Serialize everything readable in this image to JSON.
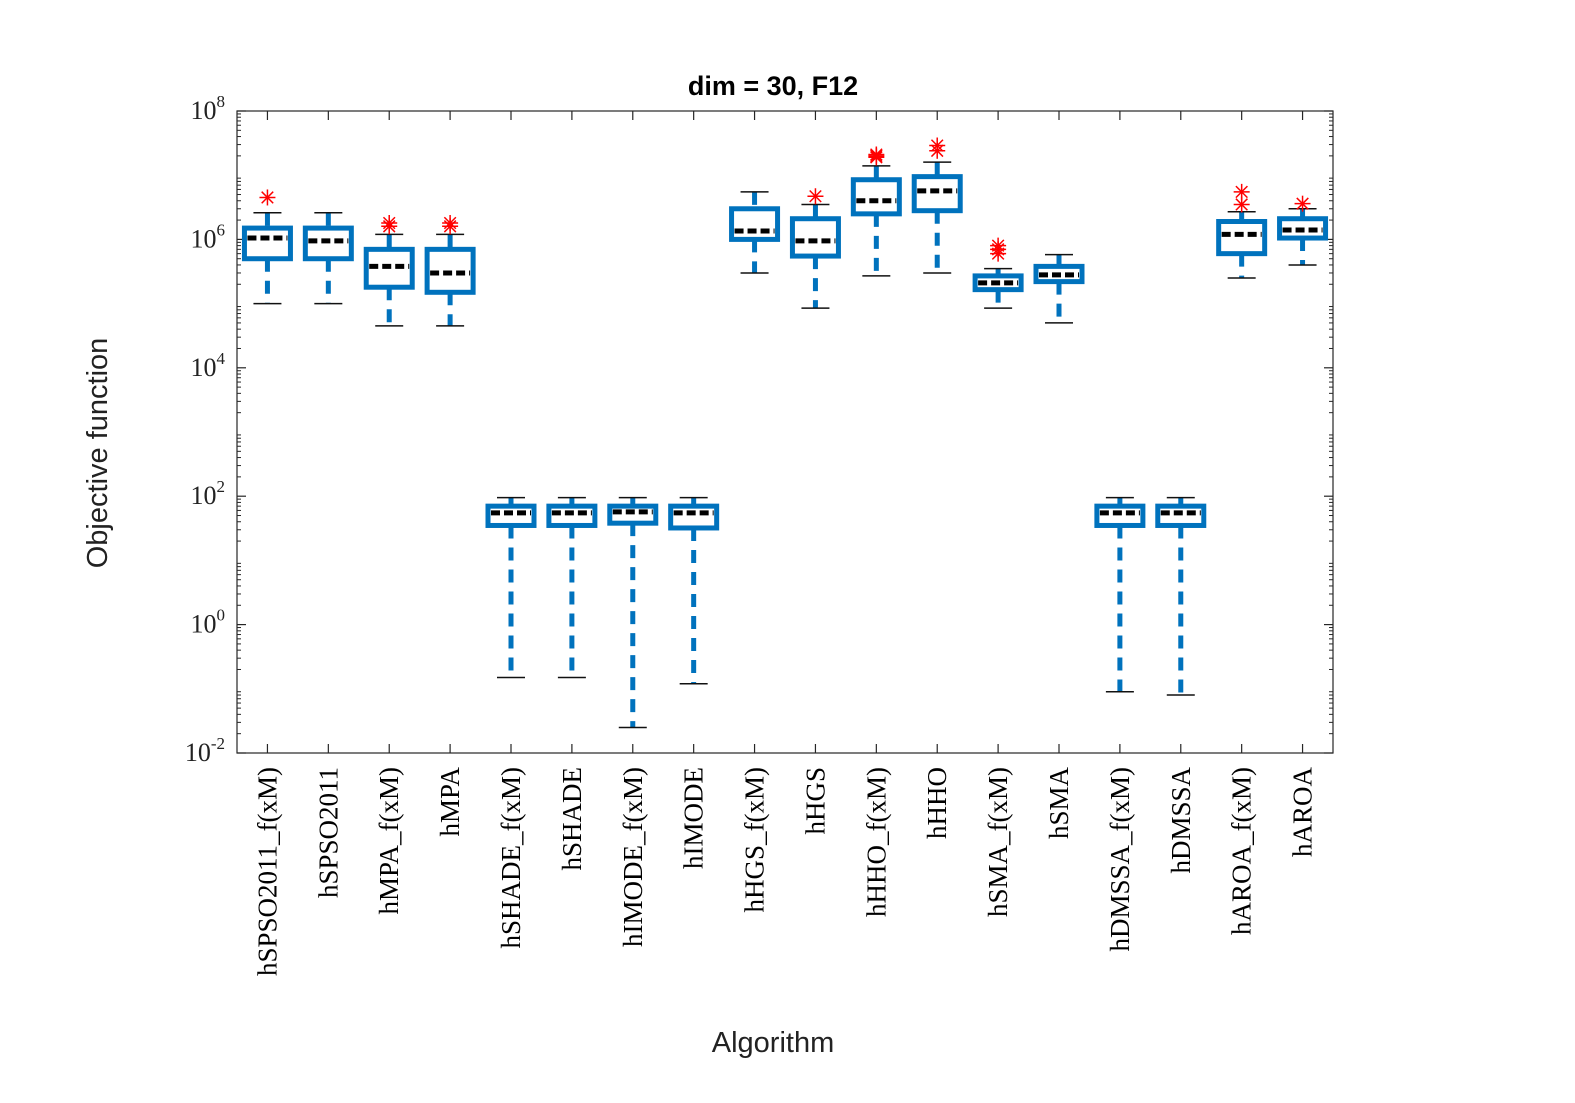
{
  "chart_data": {
    "type": "box",
    "title": "dim = 30,  F12",
    "xlabel": "Algorithm",
    "ylabel": "Objective function",
    "yscale": "log",
    "ylim": [
      0.01,
      100000000
    ],
    "yticks": [
      {
        "base": "10",
        "exp": "-2",
        "value": 0.01
      },
      {
        "base": "10",
        "exp": "0",
        "value": 1
      },
      {
        "base": "10",
        "exp": "2",
        "value": 100
      },
      {
        "base": "10",
        "exp": "4",
        "value": 10000
      },
      {
        "base": "10",
        "exp": "6",
        "value": 1000000
      },
      {
        "base": "10",
        "exp": "8",
        "value": 100000000
      }
    ],
    "colors": {
      "box": "#0072BD",
      "median": "#000000",
      "outlier": "#FF0000",
      "axis": "#262626"
    },
    "categories": [
      "hSPSO2011_f(xM)",
      "hSPSO2011",
      "hMPA_f(xM)",
      "hMPA",
      "hSHADE_f(xM)",
      "hSHADE",
      "hIMODE_f(xM)",
      "hIMODE",
      "hHGS_f(xM)",
      "hHGS",
      "hHHO_f(xM)",
      "hHHO",
      "hSMA_f(xM)",
      "hSMA",
      "hDMSSA_f(xM)",
      "hDMSSA",
      "hAROA_f(xM)",
      "hAROA"
    ],
    "boxes": [
      {
        "min": 100000,
        "q1": 500000,
        "median": 1050000,
        "q3": 1500000,
        "max": 2600000,
        "outliers": [
          4500000
        ]
      },
      {
        "min": 100000,
        "q1": 500000,
        "median": 950000,
        "q3": 1500000,
        "max": 2600000,
        "outliers": []
      },
      {
        "min": 45000,
        "q1": 180000,
        "median": 380000,
        "q3": 700000,
        "max": 1200000,
        "outliers": [
          1600000,
          1800000
        ]
      },
      {
        "min": 45000,
        "q1": 150000,
        "median": 300000,
        "q3": 700000,
        "max": 1200000,
        "outliers": [
          1600000,
          1800000
        ]
      },
      {
        "min": 0.15,
        "q1": 35,
        "median": 55,
        "q3": 70,
        "max": 95,
        "outliers": []
      },
      {
        "min": 0.15,
        "q1": 35,
        "median": 55,
        "q3": 70,
        "max": 95,
        "outliers": []
      },
      {
        "min": 0.025,
        "q1": 38,
        "median": 57,
        "q3": 70,
        "max": 95,
        "outliers": []
      },
      {
        "min": 0.12,
        "q1": 32,
        "median": 55,
        "q3": 70,
        "max": 95,
        "outliers": []
      },
      {
        "min": 300000,
        "q1": 1000000,
        "median": 1350000,
        "q3": 3000000,
        "max": 5500000,
        "outliers": []
      },
      {
        "min": 85000,
        "q1": 550000,
        "median": 950000,
        "q3": 2100000,
        "max": 3500000,
        "outliers": [
          4700000
        ]
      },
      {
        "min": 270000,
        "q1": 2500000,
        "median": 4000000,
        "q3": 8500000,
        "max": 14000000,
        "outliers": [
          19000000,
          20000000,
          21000000
        ]
      },
      {
        "min": 300000,
        "q1": 2800000,
        "median": 5700000,
        "q3": 9500000,
        "max": 16000000,
        "outliers": [
          24000000,
          29000000
        ]
      },
      {
        "min": 85000,
        "q1": 165000,
        "median": 210000,
        "q3": 270000,
        "max": 350000,
        "outliers": [
          600000,
          700000,
          800000
        ]
      },
      {
        "min": 50000,
        "q1": 220000,
        "median": 280000,
        "q3": 380000,
        "max": 580000,
        "outliers": []
      },
      {
        "min": 0.09,
        "q1": 35,
        "median": 55,
        "q3": 70,
        "max": 95,
        "outliers": []
      },
      {
        "min": 0.08,
        "q1": 35,
        "median": 55,
        "q3": 70,
        "max": 95,
        "outliers": []
      },
      {
        "min": 250000,
        "q1": 600000,
        "median": 1200000,
        "q3": 1900000,
        "max": 2700000,
        "outliers": [
          3500000,
          5500000
        ]
      },
      {
        "min": 400000,
        "q1": 1050000,
        "median": 1400000,
        "q3": 2100000,
        "max": 3000000,
        "outliers": [
          3600000
        ]
      }
    ]
  }
}
